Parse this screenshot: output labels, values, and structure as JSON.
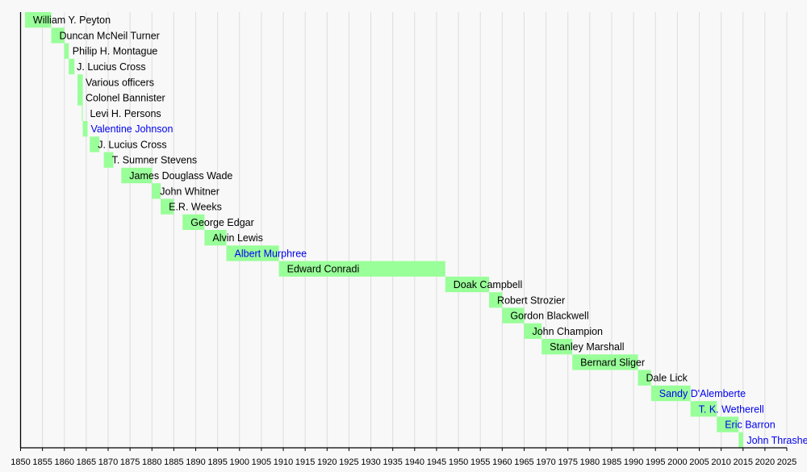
{
  "chart_data": {
    "type": "timeline",
    "title": "",
    "xlabel": "",
    "xlim": [
      1850,
      2025
    ],
    "tick_step": 5,
    "grid": true,
    "bar_color": "#99ff99",
    "link_color": "#0000ee",
    "text_color": "#000000",
    "rows": [
      {
        "name": "William Y. Peyton",
        "start": 1851,
        "end": 1857,
        "link": false
      },
      {
        "name": "Duncan McNeil Turner",
        "start": 1857,
        "end": 1860,
        "link": false
      },
      {
        "name": "Philip H. Montague",
        "start": 1860,
        "end": 1861,
        "link": false
      },
      {
        "name": "J. Lucius Cross",
        "start": 1861,
        "end": 1862.3,
        "link": false
      },
      {
        "name": "Various officers",
        "start": 1863,
        "end": 1864.2,
        "link": false
      },
      {
        "name": "Colonel Bannister",
        "start": 1863,
        "end": 1864.2,
        "link": false
      },
      {
        "name": "Levi H. Persons",
        "start": 1864,
        "end": 1864.2,
        "link": false
      },
      {
        "name": "Valentine Johnson",
        "start": 1864.2,
        "end": 1865.3,
        "link": true
      },
      {
        "name": "J. Lucius Cross",
        "start": 1865.8,
        "end": 1868,
        "link": false
      },
      {
        "name": "T. Sumner Stevens",
        "start": 1869,
        "end": 1871.2,
        "link": false
      },
      {
        "name": "James Douglass Wade",
        "start": 1873,
        "end": 1880,
        "link": false
      },
      {
        "name": "John Whitner",
        "start": 1880,
        "end": 1882,
        "link": false
      },
      {
        "name": "E.R. Weeks",
        "start": 1882,
        "end": 1885,
        "link": false
      },
      {
        "name": "George Edgar",
        "start": 1887,
        "end": 1892,
        "link": false
      },
      {
        "name": "Alvin Lewis",
        "start": 1892,
        "end": 1897,
        "link": false
      },
      {
        "name": "Albert Murphree",
        "start": 1897,
        "end": 1909,
        "link": true
      },
      {
        "name": "Edward Conradi",
        "start": 1909,
        "end": 1947,
        "link": false
      },
      {
        "name": "Doak Campbell",
        "start": 1947,
        "end": 1957,
        "link": false
      },
      {
        "name": "Robert Strozier",
        "start": 1957,
        "end": 1960,
        "link": false
      },
      {
        "name": "Gordon Blackwell",
        "start": 1960,
        "end": 1965,
        "link": false
      },
      {
        "name": "John Champion",
        "start": 1965,
        "end": 1969,
        "link": false
      },
      {
        "name": "Stanley Marshall",
        "start": 1969,
        "end": 1976,
        "link": false
      },
      {
        "name": "Bernard Sliger",
        "start": 1976,
        "end": 1991,
        "link": false
      },
      {
        "name": "Dale Lick",
        "start": 1991,
        "end": 1994,
        "link": false
      },
      {
        "name": "Sandy D'Alemberte",
        "start": 1994,
        "end": 2003,
        "link": true
      },
      {
        "name": "T. K. Wetherell",
        "start": 2003,
        "end": 2009,
        "link": true
      },
      {
        "name": "Eric Barron",
        "start": 2009,
        "end": 2014,
        "link": true
      },
      {
        "name": "John Thrasher",
        "start": 2014,
        "end": 2015,
        "link": true
      }
    ]
  }
}
